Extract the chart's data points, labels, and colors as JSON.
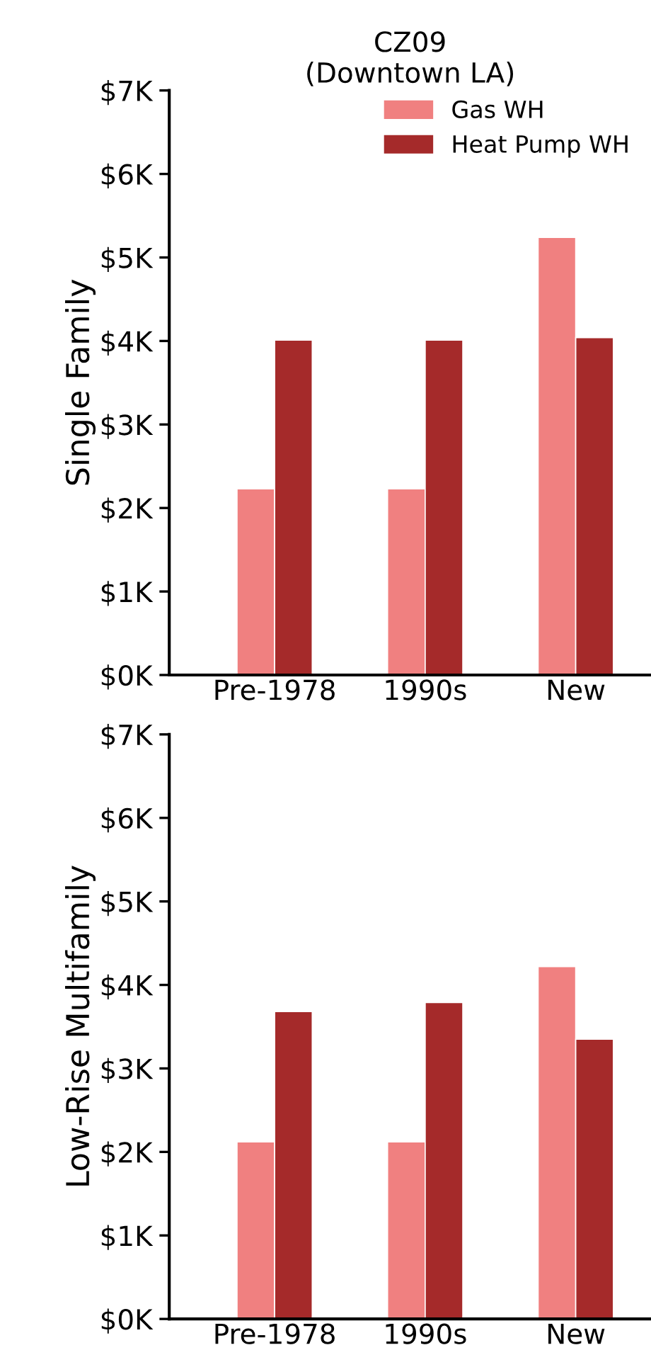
{
  "chart_data": [
    {
      "type": "bar",
      "title": "CZ09\n(Downtown LA)",
      "ylabel": "Single Family",
      "categories": [
        "Pre-1978",
        "1990s",
        "New"
      ],
      "series": [
        {
          "name": "Gas WH",
          "color": "#f08080",
          "values": [
            2.23,
            2.23,
            5.24
          ]
        },
        {
          "name": "Heat Pump WH",
          "color": "#a52a2a",
          "values": [
            4.01,
            4.01,
            4.04
          ]
        }
      ],
      "ylim": [
        0,
        7
      ],
      "yticks": [
        {
          "value": 0,
          "label": "$0K"
        },
        {
          "value": 1,
          "label": "$1K"
        },
        {
          "value": 2,
          "label": "$2K"
        },
        {
          "value": 3,
          "label": "$3K"
        },
        {
          "value": 4,
          "label": "$4K"
        },
        {
          "value": 5,
          "label": "$5K"
        },
        {
          "value": 6,
          "label": "$6K"
        },
        {
          "value": 7,
          "label": "$7K"
        }
      ],
      "legend": "top right",
      "grid": false
    },
    {
      "type": "bar",
      "ylabel": "Low-Rise Multifamily",
      "categories": [
        "Pre-1978",
        "1990s",
        "New"
      ],
      "series": [
        {
          "color": "#f08080",
          "values": [
            2.12,
            2.12,
            4.22
          ]
        },
        {
          "color": "#a52a2a",
          "values": [
            3.68,
            3.79,
            3.35
          ]
        }
      ],
      "ylim": [
        0,
        7
      ],
      "yticks": [
        {
          "value": 0,
          "label": "$0K"
        },
        {
          "value": 1,
          "label": "$1K"
        },
        {
          "value": 2,
          "label": "$2K"
        },
        {
          "value": 3,
          "label": "$3K"
        },
        {
          "value": 4,
          "label": "$4K"
        },
        {
          "value": 5,
          "label": "$5K"
        },
        {
          "value": 6,
          "label": "$6K"
        },
        {
          "value": 7,
          "label": "$7K"
        }
      ],
      "grid": false
    }
  ]
}
